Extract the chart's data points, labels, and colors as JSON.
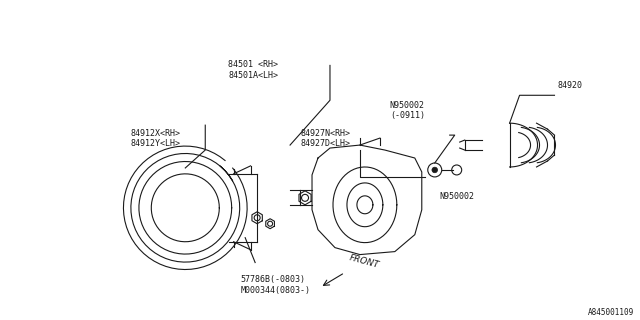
{
  "bg_color": "#ffffff",
  "line_color": "#1a1a1a",
  "text_color": "#1a1a1a",
  "diagram_id": "A845001109",
  "figsize": [
    6.4,
    3.2
  ],
  "dpi": 100,
  "labels": {
    "part_84501": "84501 <RH>\n84501A<LH>",
    "part_84920": "84920",
    "part_N950002_top": "N950002\n(-0911)",
    "part_84927": "84927N<RH>\n84927D<LH>",
    "part_N950002": "N950002",
    "part_84912": "84912X<RH>\n84912Y<LH>",
    "part_57786": "57786B(-0803)\nM000344(0803-)",
    "front": "FRONT"
  }
}
